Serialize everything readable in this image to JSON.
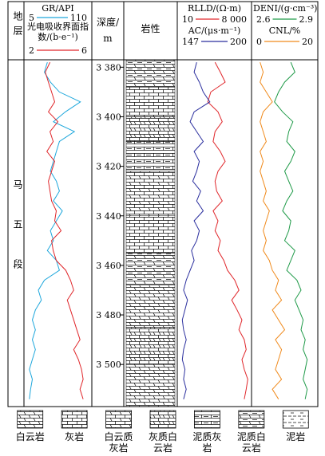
{
  "chart_data": {
    "type": "well-log",
    "header": {
      "strata": "地层",
      "depth": "深度/m",
      "lithology": "岩性"
    },
    "strata_name": "马五段",
    "ylim": [
      3377,
      3517
    ],
    "yticks": [
      {
        "value": 3380,
        "label": "3 380"
      },
      {
        "value": 3400,
        "label": "3 400"
      },
      {
        "value": 3420,
        "label": "3 420"
      },
      {
        "value": 3440,
        "label": "3 440"
      },
      {
        "value": 3460,
        "label": "3 460"
      },
      {
        "value": 3480,
        "label": "3 480"
      },
      {
        "value": 3500,
        "label": "3 500"
      }
    ],
    "depth": [
      3378,
      3382,
      3386,
      3390,
      3394,
      3398,
      3402,
      3406,
      3410,
      3414,
      3418,
      3422,
      3426,
      3430,
      3434,
      3438,
      3442,
      3446,
      3450,
      3454,
      3458,
      3462,
      3466,
      3470,
      3474,
      3478,
      3482,
      3486,
      3490,
      3494,
      3498,
      3502,
      3506,
      3510,
      3514
    ],
    "tracks": [
      {
        "series": [
          {
            "name": "GR/API",
            "color": "#1ea7dc",
            "xlim": [
              5,
              110
            ],
            "xticks": [
              5,
              110
            ],
            "log": false,
            "values": [
              40,
              35,
              45,
              60,
              95,
              70,
              50,
              85,
              60,
              55,
              50,
              45,
              55,
              60,
              50,
              65,
              55,
              45,
              50,
              40,
              55,
              60,
              35,
              25,
              30,
              20,
              15,
              20,
              15,
              20,
              15,
              10,
              15,
              12,
              10
            ]
          },
          {
            "name": "光电吸收界面指数/(b·e⁻¹)",
            "color": "#e0262a",
            "xlim": [
              2,
              6
            ],
            "xticks": [
              2,
              6
            ],
            "log": false,
            "values": [
              3.5,
              3.2,
              3.4,
              3.6,
              3.8,
              3.4,
              4.0,
              3.5,
              3.7,
              3.3,
              3.8,
              3.6,
              3.4,
              3.5,
              3.6,
              3.9,
              3.8,
              4.2,
              3.6,
              3.7,
              3.9,
              4.5,
              4.8,
              5.0,
              4.6,
              4.8,
              5.0,
              5.2,
              5.4,
              5.0,
              5.3,
              5.5,
              5.6,
              5.4,
              5.6
            ]
          }
        ]
      },
      {
        "series": [
          {
            "name": "RLLD/(Ω·m)",
            "color": "#e0262a",
            "xlim": [
              10,
              8000
            ],
            "xticks": [
              10,
              {
                "value": 8000,
                "label": "8 000"
              }
            ],
            "log": true,
            "values": [
              300,
              500,
              800,
              200,
              150,
              400,
              600,
              300,
              250,
              500,
              800,
              400,
              300,
              350,
              600,
              250,
              400,
              300,
              500,
              400,
              700,
              1000,
              2000,
              3000,
              1500,
              2500,
              4000,
              3000,
              5000,
              6000,
              4000,
              5000,
              7000,
              6000,
              5000
            ]
          },
          {
            "name": "AC/(μs·m⁻¹)",
            "color": "#2b2f9e",
            "xlim": [
              147,
              200
            ],
            "xticks": [
              147,
              200
            ],
            "log": false,
            "values": [
              160,
              158,
              162,
              165,
              170,
              158,
              155,
              160,
              165,
              158,
              162,
              160,
              157,
              163,
              160,
              165,
              158,
              162,
              160,
              156,
              158,
              155,
              152,
              150,
              153,
              151,
              149,
              150,
              152,
              150,
              149,
              151,
              150,
              152,
              150
            ]
          }
        ]
      },
      {
        "series": [
          {
            "name": "DENI/(g·cm⁻³)",
            "color": "#1f9a48",
            "xlim": [
              2.6,
              2.9
            ],
            "xticks": [
              2.6,
              2.9
            ],
            "log": false,
            "values": [
              2.78,
              2.8,
              2.75,
              2.72,
              2.7,
              2.74,
              2.79,
              2.77,
              2.76,
              2.8,
              2.78,
              2.75,
              2.77,
              2.79,
              2.76,
              2.74,
              2.78,
              2.77,
              2.75,
              2.8,
              2.78,
              2.76,
              2.81,
              2.83,
              2.8,
              2.82,
              2.84,
              2.83,
              2.85,
              2.84,
              2.86,
              2.85,
              2.84,
              2.86,
              2.85
            ]
          },
          {
            "name": "CNL/%",
            "color": "#f08a1c",
            "xlim": [
              0,
              20
            ],
            "xticks": [
              0,
              20
            ],
            "log": false,
            "values": [
              2,
              3,
              2,
              4,
              6,
              3,
              2,
              3,
              4,
              2,
              3,
              2,
              3,
              4,
              3,
              5,
              4,
              3,
              4,
              3,
              5,
              6,
              8,
              7,
              9,
              6,
              8,
              10,
              7,
              9,
              8,
              7,
              9,
              6,
              8
            ]
          }
        ]
      }
    ],
    "lithology": [
      {
        "top": 3377,
        "bottom": 3388,
        "rock": "泥质白云岩"
      },
      {
        "top": 3388,
        "bottom": 3400,
        "rock": "灰岩"
      },
      {
        "top": 3400,
        "bottom": 3410,
        "rock": "灰质白云岩"
      },
      {
        "top": 3410,
        "bottom": 3422,
        "rock": "泥质灰岩"
      },
      {
        "top": 3422,
        "bottom": 3440,
        "rock": "白云质灰岩"
      },
      {
        "top": 3440,
        "bottom": 3455,
        "rock": "灰岩"
      },
      {
        "top": 3455,
        "bottom": 3468,
        "rock": "泥质白云岩"
      },
      {
        "top": 3468,
        "bottom": 3485,
        "rock": "白云岩"
      },
      {
        "top": 3485,
        "bottom": 3500,
        "rock": "灰质白云岩"
      },
      {
        "top": 3500,
        "bottom": 3517,
        "rock": "白云岩"
      }
    ],
    "legend": [
      "白云岩",
      "灰岩",
      "白云质灰岩",
      "灰质白云岩",
      "泥质灰岩",
      "泥质白云岩",
      "泥岩"
    ]
  }
}
